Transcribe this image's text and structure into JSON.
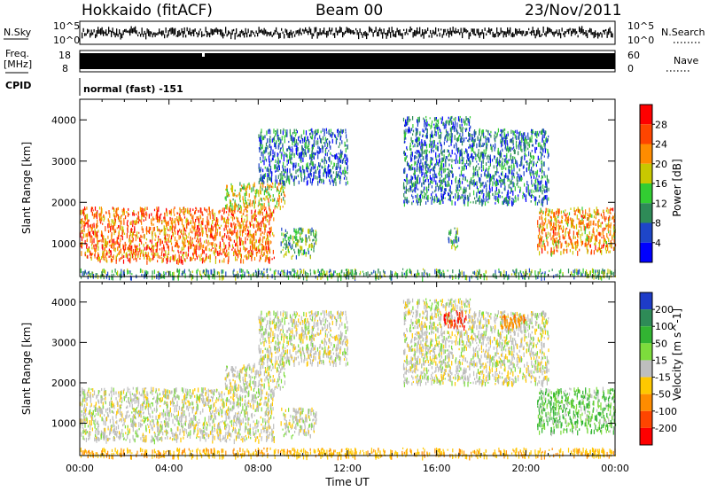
{
  "header": {
    "title_left": "Hokkaido (fitACF)",
    "title_center": "Beam 00",
    "title_right": "23/Nov/2011"
  },
  "strips": {
    "nsky_label": "N.Sky",
    "nsky_ticks": [
      "10^5",
      "10^0"
    ],
    "nsearch_label": "N.Search",
    "nsearch_ticks_right": [
      "10^5",
      "10^0"
    ],
    "freq_label": "Freq.",
    "freq_unit": "[MHz]",
    "freq_ticks": [
      "18",
      "8"
    ],
    "nave_label": "Nave",
    "nave_ticks": [
      "60",
      "0"
    ],
    "cpid_label": "CPID",
    "cpid_value": "normal (fast) -151"
  },
  "chart_data": [
    {
      "type": "heatmap",
      "title": "",
      "xlabel": "",
      "ylabel": "Slant Range [km]",
      "x_ticks": [
        "00:00",
        "04:00",
        "08:00",
        "12:00",
        "16:00",
        "20:00",
        "00:00"
      ],
      "xlim_hours": [
        0,
        24
      ],
      "y_ticks": [
        "1000",
        "2000",
        "3000",
        "4000"
      ],
      "ylim": [
        200,
        4500
      ],
      "colorbar": {
        "label": "Power [dB]",
        "ticks": [
          "4",
          "8",
          "12",
          "16",
          "20",
          "24",
          "28"
        ],
        "colors": [
          "#0000ff",
          "#1e46c8",
          "#2e8b57",
          "#32cd32",
          "#c8c800",
          "#ff8c00",
          "#ff4500",
          "#ff0000"
        ]
      },
      "regions": [
        {
          "t0": 0.0,
          "t1": 8.7,
          "r0": 600,
          "r1": 1900,
          "value": 24
        },
        {
          "t0": 6.5,
          "t1": 9.2,
          "r0": 1900,
          "r1": 2500,
          "value": 18
        },
        {
          "t0": 9.0,
          "t1": 10.6,
          "r0": 700,
          "r1": 1400,
          "value": 13
        },
        {
          "t0": 8.0,
          "t1": 12.0,
          "r0": 2500,
          "r1": 3800,
          "value": 8
        },
        {
          "t0": 14.5,
          "t1": 17.5,
          "r0": 2000,
          "r1": 4100,
          "value": 8
        },
        {
          "t0": 16.5,
          "t1": 17.0,
          "r0": 900,
          "r1": 1400,
          "value": 11
        },
        {
          "t0": 17.5,
          "t1": 21.0,
          "r0": 2000,
          "r1": 3800,
          "value": 9
        },
        {
          "t0": 20.5,
          "t1": 24.0,
          "r0": 800,
          "r1": 1900,
          "value": 22
        },
        {
          "t0": 0.0,
          "t1": 24.0,
          "r0": 200,
          "r1": 400,
          "value": 12
        }
      ]
    },
    {
      "type": "heatmap",
      "title": "",
      "xlabel": "Time UT",
      "ylabel": "Slant Range [km]",
      "x_ticks": [
        "00:00",
        "04:00",
        "08:00",
        "12:00",
        "16:00",
        "20:00",
        "00:00"
      ],
      "xlim_hours": [
        0,
        24
      ],
      "y_ticks": [
        "1000",
        "2000",
        "3000",
        "4000"
      ],
      "ylim": [
        200,
        4500
      ],
      "colorbar": {
        "label": "Velocity [m s^-1]",
        "ticks": [
          "200",
          "100",
          "50",
          "15",
          "-15",
          "-50",
          "-100",
          "-200"
        ],
        "colors": [
          "#1e3cc8",
          "#2e8b57",
          "#32b432",
          "#7ddc3c",
          "#bebebe",
          "#ffc800",
          "#ff8c00",
          "#ff4500",
          "#ff0000"
        ]
      },
      "regions": [
        {
          "t0": 0.0,
          "t1": 8.7,
          "r0": 600,
          "r1": 1900,
          "value": 0
        },
        {
          "t0": 6.5,
          "t1": 9.2,
          "r0": 1900,
          "r1": 2500,
          "value": 0
        },
        {
          "t0": 9.0,
          "t1": 10.6,
          "r0": 700,
          "r1": 1400,
          "value": 0
        },
        {
          "t0": 8.0,
          "t1": 12.0,
          "r0": 2500,
          "r1": 3800,
          "value": 0
        },
        {
          "t0": 14.5,
          "t1": 17.5,
          "r0": 2000,
          "r1": 4100,
          "value": 0
        },
        {
          "t0": 16.3,
          "t1": 17.3,
          "r0": 3400,
          "r1": 3800,
          "value": -150
        },
        {
          "t0": 17.5,
          "t1": 21.0,
          "r0": 2000,
          "r1": 3800,
          "value": 0
        },
        {
          "t0": 18.8,
          "t1": 20.0,
          "r0": 3400,
          "r1": 3700,
          "value": -80
        },
        {
          "t0": 20.5,
          "t1": 24.0,
          "r0": 800,
          "r1": 1900,
          "value": 30
        },
        {
          "t0": 0.0,
          "t1": 24.0,
          "r0": 200,
          "r1": 400,
          "value": -40
        }
      ]
    }
  ]
}
